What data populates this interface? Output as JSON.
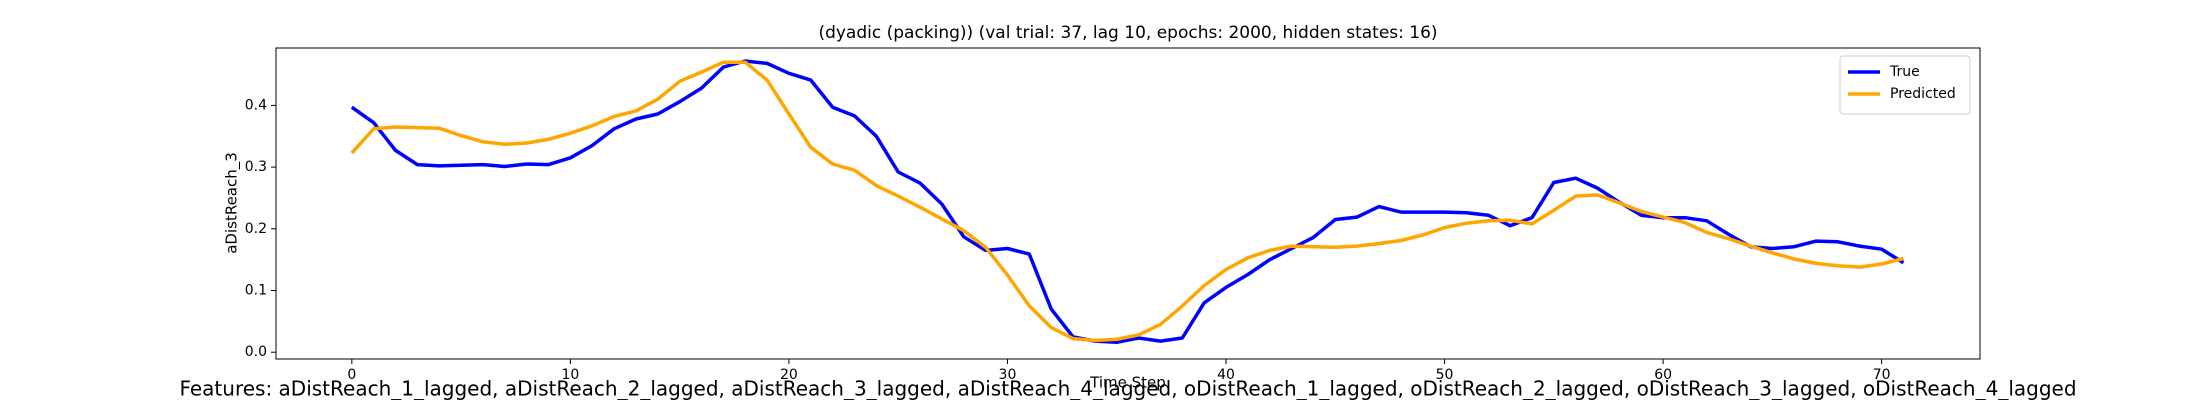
{
  "chart_data": {
    "type": "line",
    "title": "(dyadic (packing)) (val trial: 37, lag 10, epochs: 2000, hidden states: 16)",
    "xlabel": "Time Step",
    "ylabel": "aDistReach_3",
    "x": [
      0,
      1,
      2,
      3,
      4,
      5,
      6,
      7,
      8,
      9,
      10,
      11,
      12,
      13,
      14,
      15,
      16,
      17,
      18,
      19,
      20,
      21,
      22,
      23,
      24,
      25,
      26,
      27,
      28,
      29,
      30,
      31,
      32,
      33,
      34,
      35,
      36,
      37,
      38,
      39,
      40,
      41,
      42,
      43,
      44,
      45,
      46,
      47,
      48,
      49,
      50,
      51,
      52,
      53,
      54,
      55,
      56,
      57,
      58,
      59,
      60,
      61,
      62,
      63,
      64,
      65,
      66,
      67,
      68,
      69,
      70,
      71
    ],
    "series": [
      {
        "name": "True",
        "color": "#0000ff",
        "values": [
          0.397,
          0.372,
          0.327,
          0.304,
          0.302,
          0.303,
          0.304,
          0.301,
          0.305,
          0.304,
          0.315,
          0.335,
          0.362,
          0.378,
          0.386,
          0.406,
          0.428,
          0.462,
          0.472,
          0.468,
          0.452,
          0.441,
          0.397,
          0.383,
          0.35,
          0.292,
          0.274,
          0.24,
          0.187,
          0.165,
          0.168,
          0.159,
          0.07,
          0.025,
          0.018,
          0.016,
          0.023,
          0.018,
          0.023,
          0.08,
          0.105,
          0.126,
          0.15,
          0.168,
          0.186,
          0.215,
          0.219,
          0.236,
          0.227,
          0.227,
          0.227,
          0.226,
          0.222,
          0.205,
          0.218,
          0.275,
          0.282,
          0.266,
          0.243,
          0.222,
          0.218,
          0.218,
          0.213,
          0.191,
          0.171,
          0.168,
          0.171,
          0.18,
          0.179,
          0.172,
          0.167,
          0.145
        ]
      },
      {
        "name": "Predicted",
        "color": "#ffa500",
        "values": [
          0.323,
          0.362,
          0.365,
          0.364,
          0.363,
          0.351,
          0.341,
          0.337,
          0.339,
          0.345,
          0.355,
          0.367,
          0.382,
          0.391,
          0.41,
          0.439,
          0.454,
          0.47,
          0.47,
          0.441,
          0.386,
          0.332,
          0.305,
          0.295,
          0.27,
          0.253,
          0.235,
          0.216,
          0.197,
          0.17,
          0.125,
          0.075,
          0.04,
          0.022,
          0.019,
          0.021,
          0.028,
          0.045,
          0.075,
          0.108,
          0.134,
          0.153,
          0.165,
          0.172,
          0.171,
          0.17,
          0.172,
          0.176,
          0.181,
          0.19,
          0.202,
          0.209,
          0.213,
          0.214,
          0.208,
          0.23,
          0.253,
          0.255,
          0.242,
          0.228,
          0.219,
          0.21,
          0.194,
          0.184,
          0.172,
          0.161,
          0.151,
          0.144,
          0.14,
          0.138,
          0.143,
          0.152
        ]
      }
    ],
    "xlim": [
      -3.47,
      74.5
    ],
    "ylim": [
      -0.011,
      0.493
    ],
    "xticks": [
      0,
      10,
      20,
      30,
      40,
      50,
      60,
      70
    ],
    "yticks": [
      {
        "value": 0,
        "label": "0.0"
      },
      0.1,
      0.2,
      0.3,
      0.4
    ],
    "legend": "upper right",
    "grid": false,
    "caption": "Features: aDistReach_1_lagged, aDistReach_2_lagged, aDistReach_3_lagged, aDistReach_4_lagged, oDistReach_1_lagged, oDistReach_2_lagged, oDistReach_3_lagged, oDistReach_4_lagged"
  }
}
